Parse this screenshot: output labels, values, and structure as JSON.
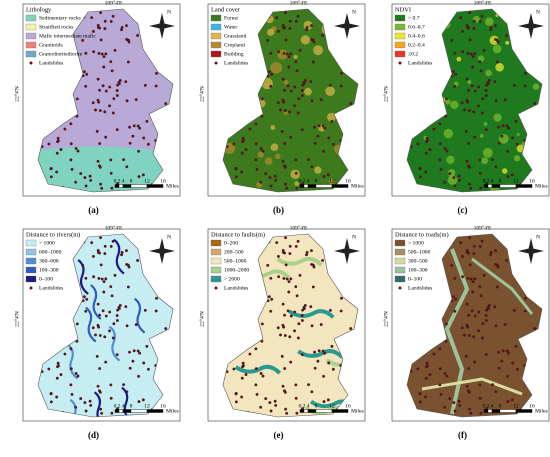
{
  "lon_label": "109°4'E",
  "lat_label": "22°4'N",
  "north": "N",
  "scale": {
    "ticks": [
      "0",
      "2",
      "4",
      "8",
      "12",
      "16"
    ],
    "unit": "Miles"
  },
  "panels": [
    {
      "label": "(a)",
      "legend_title": "Lithology",
      "landslides": "Landslides",
      "legend": [
        {
          "name": "Sedimentary rocks",
          "color": "#7fd3c0"
        },
        {
          "name": "Stratified rocks",
          "color": "#f6f2a6"
        },
        {
          "name": "Mafic intermediate mafic",
          "color": "#b8a9d6"
        },
        {
          "name": "Granitoids",
          "color": "#f08080"
        },
        {
          "name": "Granodioritediorite",
          "color": "#6fa8c8"
        }
      ]
    },
    {
      "label": "(b)",
      "legend_title": "Land cover",
      "landslides": "Landslides",
      "legend": [
        {
          "name": "Forest",
          "color": "#3d7a1e"
        },
        {
          "name": "Water",
          "color": "#3cb4e6"
        },
        {
          "name": "Grassland",
          "color": "#e0b84a"
        },
        {
          "name": "Cropland",
          "color": "#b88a2e"
        },
        {
          "name": "Building",
          "color": "#b01818"
        }
      ]
    },
    {
      "label": "(c)",
      "legend_title": "NDVI",
      "landslides": "Landslides",
      "legend": [
        {
          "name": "> 0.7",
          "color": "#1f7a1f"
        },
        {
          "name": "0.6–0.7",
          "color": "#7ab82e"
        },
        {
          "name": "0.4–0.6",
          "color": "#e8e830"
        },
        {
          "name": "0.2–0.4",
          "color": "#f5a623"
        },
        {
          "name": "≤0.2",
          "color": "#e8352a"
        }
      ]
    },
    {
      "label": "(d)",
      "legend_title": "Distance to rivers(m)",
      "landslides": "Landslides",
      "legend": [
        {
          "name": "> 1000",
          "color": "#c6eef2"
        },
        {
          "name": "600–1000",
          "color": "#8ec4e8"
        },
        {
          "name": "300–600",
          "color": "#4f8fd8"
        },
        {
          "name": "100–300",
          "color": "#2f5cc0"
        },
        {
          "name": "0–100",
          "color": "#1a1a8a"
        }
      ]
    },
    {
      "label": "(e)",
      "legend_title": "Distance to faults(m)",
      "landslides": "Landslides",
      "legend": [
        {
          "name": "0–200",
          "color": "#a86a12"
        },
        {
          "name": "200–500",
          "color": "#d2a868"
        },
        {
          "name": "500–1000",
          "color": "#f3e6bf"
        },
        {
          "name": "1000–2000",
          "color": "#a8d28a"
        },
        {
          "name": "> 2000",
          "color": "#2a9a90"
        }
      ]
    },
    {
      "label": "(f)",
      "legend_title": "Distance to roads(m)",
      "landslides": "Landslides",
      "legend": [
        {
          "name": "> 1000",
          "color": "#7a5230"
        },
        {
          "name": "500–1000",
          "color": "#a8905a"
        },
        {
          "name": "300–500",
          "color": "#d8dca0"
        },
        {
          "name": "100–300",
          "color": "#9cc49a"
        },
        {
          "name": "0–100",
          "color": "#2e6e6a"
        }
      ]
    }
  ]
}
